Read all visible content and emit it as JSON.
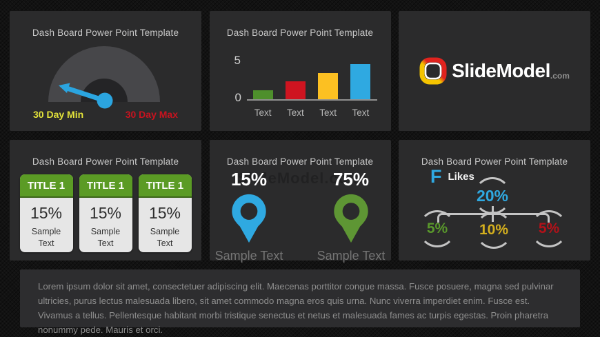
{
  "colors": {
    "panel_bg": "#2b2b2c",
    "title_text": "#c9c9c9",
    "blue": "#2fa9e1",
    "gauge_arc": "#47474a",
    "gauge_hole": "#242426",
    "min_label_yellow": "#e2e23a",
    "max_label_red": "#c8131f",
    "connector_gray": "#c4c4c4"
  },
  "panels": {
    "gauge": {
      "title": "Dash Board Power Point Template",
      "min_label": "30 Day Min",
      "max_label": "30 Day Max",
      "needle_color": "#2ba5e0"
    },
    "bar_chart": {
      "title": "Dash Board Power Point Template",
      "y_top": "5",
      "y_bottom": "0",
      "y_max": 5,
      "categories": [
        "Text",
        "Text",
        "Text",
        "Text"
      ],
      "values": [
        1,
        2,
        3,
        4
      ],
      "bar_colors": [
        "#4e8f2c",
        "#cf1420",
        "#fcc022",
        "#2fa9e1"
      ]
    },
    "logo": {
      "brand": "SlideModel",
      "tld": ".com"
    },
    "cards": {
      "title": "Dash Board Power Point Template",
      "header_color": "#5b9b25",
      "items": [
        {
          "title": "TITLE 1",
          "value": "15%",
          "caption": "Sample Text"
        },
        {
          "title": "TITLE 1",
          "value": "15%",
          "caption": "Sample Text"
        },
        {
          "title": "TITLE 1",
          "value": "15%",
          "caption": "Sample Text"
        }
      ]
    },
    "pins": {
      "title": "Dash Board Power Point Template",
      "watermark": "SlideModel.com",
      "items": [
        {
          "value": "15%",
          "caption": "Sample Text",
          "color": "#2fa9e1"
        },
        {
          "value": "75%",
          "caption": "Sample Text",
          "color": "#5e9634"
        }
      ]
    },
    "likes": {
      "title": "Dash Board Power Point Template",
      "icon_letter": "F",
      "icon_color": "#2fa9e1",
      "label": "Likes",
      "root": {
        "value": "20%",
        "color": "#2fa9e1"
      },
      "children": [
        {
          "value": "5%",
          "color": "#59982b"
        },
        {
          "value": "10%",
          "color": "#d4af1e"
        },
        {
          "value": "5%",
          "color": "#b31119"
        }
      ]
    }
  },
  "footer": {
    "text": "Lorem ipsum dolor sit amet, consectetuer adipiscing elit. Maecenas porttitor congue massa. Fusce posuere, magna sed pulvinar ultricies, purus lectus malesuada libero, sit amet commodo magna eros quis urna. Nunc viverra imperdiet enim. Fusce est. Vivamus a tellus. Pellentesque habitant morbi tristique senectus et netus et malesuada fames ac turpis egestas. Proin pharetra nonummy pede. Mauris et orci."
  },
  "chart_data": [
    {
      "type": "gauge",
      "title": "Dash Board Power Point Template",
      "min_label": "30 Day Min",
      "max_label": "30 Day Max",
      "needle_position": "near minimum (pointing upper-left)"
    },
    {
      "type": "bar",
      "title": "Dash Board Power Point Template",
      "categories": [
        "Text",
        "Text",
        "Text",
        "Text"
      ],
      "values": [
        1,
        2,
        3,
        4
      ],
      "series_colors": [
        "green",
        "red",
        "yellow",
        "blue"
      ],
      "ylabel": "",
      "xlabel": "",
      "ylim": [
        0,
        5
      ],
      "yticks": [
        0,
        5
      ],
      "grid": false,
      "legend": false
    },
    {
      "type": "scatter",
      "subtype": "map-pin-stats",
      "title": "Dash Board Power Point Template",
      "points": [
        {
          "value": "15%",
          "label": "Sample Text",
          "color": "blue"
        },
        {
          "value": "75%",
          "label": "Sample Text",
          "color": "green"
        }
      ]
    },
    {
      "type": "table",
      "subtype": "tree-breakdown",
      "title": "Dash Board Power Point Template",
      "metric": "Likes",
      "root_value": "20%",
      "child_values": [
        "5%",
        "10%",
        "5%"
      ]
    }
  ]
}
